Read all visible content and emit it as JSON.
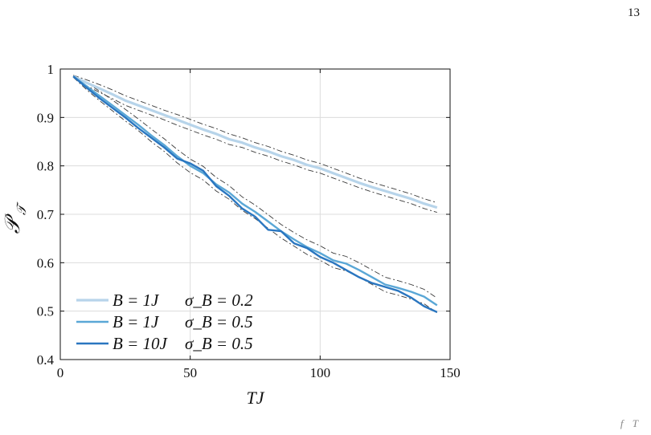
{
  "page": {
    "number": "13",
    "footer_fragment": "f T"
  },
  "chart_data": {
    "type": "line",
    "xlabel": "TJ",
    "ylabel": "𝒫_𝒯",
    "xlim": [
      0,
      150
    ],
    "ylim": [
      0.4,
      1.0
    ],
    "xticks": [
      0,
      50,
      100,
      150
    ],
    "yticks": [
      0.4,
      0.5,
      0.6,
      0.7,
      0.8,
      0.9,
      1.0
    ],
    "ytick_labels": [
      "0.4",
      "0.5",
      "0.6",
      "0.7",
      "0.8",
      "0.9",
      "1"
    ],
    "grid": true,
    "legend_position": "bottom-left",
    "colors": {
      "band": "#3a3a3a",
      "grid": "#dcdcdc"
    },
    "series": [
      {
        "name": "B = 1J   σ_B = 0.2",
        "legend_main": "B = 1J",
        "legend_sigma": "σ_B = 0.2",
        "color": "#b7d4ea",
        "x": [
          5,
          10,
          15,
          20,
          25,
          30,
          35,
          40,
          45,
          50,
          55,
          60,
          65,
          70,
          75,
          80,
          85,
          90,
          95,
          100,
          105,
          110,
          115,
          120,
          125,
          130,
          135,
          140,
          145
        ],
        "values": [
          0.985,
          0.972,
          0.96,
          0.948,
          0.935,
          0.925,
          0.915,
          0.905,
          0.895,
          0.885,
          0.875,
          0.866,
          0.855,
          0.848,
          0.838,
          0.83,
          0.82,
          0.812,
          0.802,
          0.795,
          0.785,
          0.775,
          0.765,
          0.756,
          0.748,
          0.74,
          0.732,
          0.722,
          0.714
        ],
        "band_upper": [
          0.987,
          0.978,
          0.968,
          0.957,
          0.945,
          0.935,
          0.925,
          0.915,
          0.906,
          0.896,
          0.886,
          0.877,
          0.866,
          0.858,
          0.848,
          0.84,
          0.83,
          0.822,
          0.812,
          0.805,
          0.795,
          0.785,
          0.775,
          0.766,
          0.758,
          0.75,
          0.742,
          0.732,
          0.724
        ],
        "band_lower": [
          0.983,
          0.966,
          0.952,
          0.939,
          0.925,
          0.915,
          0.905,
          0.895,
          0.884,
          0.874,
          0.864,
          0.855,
          0.844,
          0.838,
          0.828,
          0.82,
          0.81,
          0.802,
          0.792,
          0.785,
          0.775,
          0.765,
          0.755,
          0.746,
          0.738,
          0.73,
          0.722,
          0.712,
          0.704
        ]
      },
      {
        "name": "B = 1J   σ_B = 0.5",
        "legend_main": "B = 1J",
        "legend_sigma": "σ_B = 0.5",
        "color": "#5aa7d6",
        "x": [
          5,
          10,
          15,
          20,
          25,
          30,
          35,
          40,
          45,
          50,
          55,
          60,
          65,
          70,
          75,
          80,
          85,
          90,
          95,
          100,
          105,
          110,
          115,
          120,
          125,
          130,
          135,
          140,
          145
        ],
        "values": [
          0.985,
          0.965,
          0.945,
          0.925,
          0.905,
          0.885,
          0.863,
          0.843,
          0.82,
          0.8,
          0.785,
          0.762,
          0.745,
          0.722,
          0.705,
          0.685,
          0.665,
          0.648,
          0.632,
          0.62,
          0.605,
          0.598,
          0.585,
          0.57,
          0.555,
          0.548,
          0.54,
          0.53,
          0.512
        ],
        "band_upper": [
          0.987,
          0.972,
          0.955,
          0.936,
          0.917,
          0.897,
          0.876,
          0.856,
          0.834,
          0.814,
          0.799,
          0.776,
          0.759,
          0.736,
          0.719,
          0.699,
          0.679,
          0.662,
          0.647,
          0.635,
          0.62,
          0.613,
          0.6,
          0.585,
          0.57,
          0.563,
          0.555,
          0.545,
          0.527
        ],
        "band_lower": [
          0.983,
          0.958,
          0.935,
          0.914,
          0.893,
          0.873,
          0.85,
          0.83,
          0.806,
          0.786,
          0.771,
          0.748,
          0.731,
          0.708,
          0.691,
          0.671,
          0.651,
          0.634,
          0.617,
          0.605,
          0.59,
          0.583,
          0.57,
          0.555,
          0.54,
          0.533,
          0.525,
          0.515,
          0.497
        ]
      },
      {
        "name": "B = 10J   σ_B = 0.5",
        "legend_main": "B = 10J",
        "legend_sigma": "σ_B = 0.5",
        "color": "#2a76c0",
        "x": [
          5,
          10,
          15,
          20,
          25,
          30,
          35,
          40,
          45,
          50,
          55,
          60,
          65,
          70,
          75,
          80,
          85,
          90,
          95,
          100,
          105,
          110,
          115,
          120,
          125,
          130,
          135,
          140,
          145
        ],
        "values": [
          0.985,
          0.962,
          0.94,
          0.92,
          0.9,
          0.878,
          0.858,
          0.838,
          0.815,
          0.805,
          0.79,
          0.758,
          0.738,
          0.712,
          0.695,
          0.668,
          0.665,
          0.64,
          0.63,
          0.612,
          0.6,
          0.585,
          0.57,
          0.558,
          0.55,
          0.542,
          0.528,
          0.51,
          0.498
        ],
        "band_upper": [],
        "band_lower": []
      }
    ]
  }
}
